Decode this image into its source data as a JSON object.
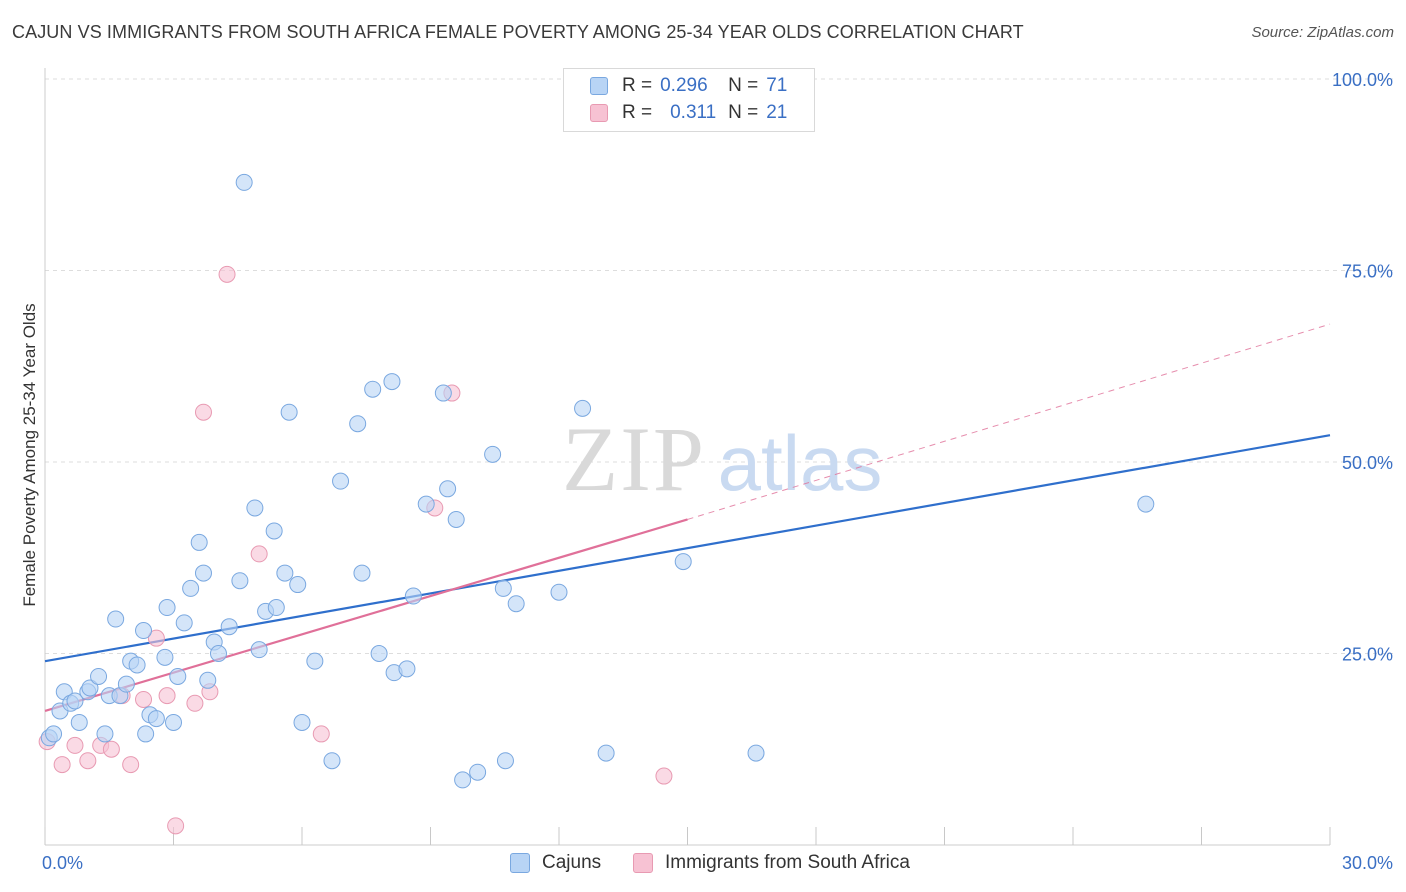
{
  "title": "CAJUN VS IMMIGRANTS FROM SOUTH AFRICA FEMALE POVERTY AMONG 25-34 YEAR OLDS CORRELATION CHART",
  "source": "Source: ZipAtlas.com",
  "watermark": {
    "zip": "ZIP",
    "atlas": "atlas"
  },
  "legend_top": {
    "rows": [
      {
        "r_label": "R =",
        "r_value": "0.296",
        "n_label": "N =",
        "n_value": "71"
      },
      {
        "r_label": "R =",
        "r_value": "0.311",
        "n_label": "N =",
        "n_value": "21"
      }
    ]
  },
  "colors": {
    "cajun_fill": "#b8d4f5",
    "cajun_stroke": "#7aa8e0",
    "cajun_line": "#2f6fcc",
    "sa_fill": "#f7c2d3",
    "sa_stroke": "#e89ab2",
    "sa_line": "#e07099",
    "grid": "#dddddd",
    "axis_label": "#3a6fc4"
  },
  "chart_data": {
    "type": "scatter",
    "title": "CAJUN VS IMMIGRANTS FROM SOUTH AFRICA FEMALE POVERTY AMONG 25-34 YEAR OLDS CORRELATION CHART",
    "xlabel": "",
    "ylabel": "Female Poverty Among 25-34 Year Olds",
    "xlim": [
      0,
      30
    ],
    "ylim": [
      0,
      100
    ],
    "x_tick_labels": [
      "0.0%",
      "30.0%"
    ],
    "y_tick_labels": [
      "25.0%",
      "50.0%",
      "75.0%",
      "100.0%"
    ],
    "y_ticks": [
      25,
      50,
      75,
      100
    ],
    "legend": [
      "Cajuns",
      "Immigrants from South Africa"
    ],
    "series": [
      {
        "name": "Cajuns",
        "points": [
          [
            0.1,
            14
          ],
          [
            0.2,
            14.5
          ],
          [
            0.35,
            17.5
          ],
          [
            0.45,
            20
          ],
          [
            0.6,
            18.5
          ],
          [
            0.7,
            18.8
          ],
          [
            0.8,
            16
          ],
          [
            1.0,
            20
          ],
          [
            1.05,
            20.5
          ],
          [
            1.25,
            22
          ],
          [
            1.4,
            14.5
          ],
          [
            1.5,
            19.5
          ],
          [
            1.65,
            29.5
          ],
          [
            1.75,
            19.5
          ],
          [
            1.9,
            21
          ],
          [
            2.0,
            24
          ],
          [
            2.15,
            23.5
          ],
          [
            2.3,
            28
          ],
          [
            2.35,
            14.5
          ],
          [
            2.45,
            17
          ],
          [
            2.6,
            16.5
          ],
          [
            2.8,
            24.5
          ],
          [
            2.85,
            31
          ],
          [
            3.0,
            16
          ],
          [
            3.1,
            22
          ],
          [
            3.25,
            29
          ],
          [
            3.4,
            33.5
          ],
          [
            3.6,
            39.5
          ],
          [
            3.7,
            35.5
          ],
          [
            3.8,
            21.5
          ],
          [
            3.95,
            26.5
          ],
          [
            4.05,
            25
          ],
          [
            4.3,
            28.5
          ],
          [
            4.55,
            34.5
          ],
          [
            4.65,
            86.5
          ],
          [
            4.9,
            44
          ],
          [
            5.0,
            25.5
          ],
          [
            5.15,
            30.5
          ],
          [
            5.35,
            41
          ],
          [
            5.4,
            31
          ],
          [
            5.6,
            35.5
          ],
          [
            5.7,
            56.5
          ],
          [
            5.9,
            34
          ],
          [
            6.0,
            16
          ],
          [
            6.3,
            24
          ],
          [
            6.7,
            11
          ],
          [
            6.9,
            47.5
          ],
          [
            7.3,
            55
          ],
          [
            7.4,
            35.5
          ],
          [
            7.65,
            59.5
          ],
          [
            7.8,
            25
          ],
          [
            8.1,
            60.5
          ],
          [
            8.15,
            22.5
          ],
          [
            8.45,
            23
          ],
          [
            8.6,
            32.5
          ],
          [
            8.9,
            44.5
          ],
          [
            9.3,
            59
          ],
          [
            9.4,
            46.5
          ],
          [
            9.6,
            42.5
          ],
          [
            9.75,
            8.5
          ],
          [
            10.1,
            9.5
          ],
          [
            10.45,
            51
          ],
          [
            10.7,
            33.5
          ],
          [
            10.75,
            11
          ],
          [
            11.0,
            31.5
          ],
          [
            12.0,
            33
          ],
          [
            12.55,
            57
          ],
          [
            13.1,
            12
          ],
          [
            14.9,
            37
          ],
          [
            16.6,
            12
          ],
          [
            25.7,
            44.5
          ]
        ],
        "trend": {
          "x0": 0,
          "y0": 24,
          "x1": 30,
          "y1": 53.5
        }
      },
      {
        "name": "Immigrants from South Africa",
        "points": [
          [
            0.05,
            13.5
          ],
          [
            0.4,
            10.5
          ],
          [
            0.7,
            13
          ],
          [
            1.0,
            11
          ],
          [
            1.3,
            13
          ],
          [
            1.55,
            12.5
          ],
          [
            1.8,
            19.5
          ],
          [
            2.0,
            10.5
          ],
          [
            2.3,
            19
          ],
          [
            2.6,
            27
          ],
          [
            2.85,
            19.5
          ],
          [
            3.05,
            2.5
          ],
          [
            3.5,
            18.5
          ],
          [
            3.7,
            56.5
          ],
          [
            3.85,
            20
          ],
          [
            4.25,
            74.5
          ],
          [
            5.0,
            38
          ],
          [
            6.45,
            14.5
          ],
          [
            9.1,
            44
          ],
          [
            9.5,
            59
          ],
          [
            14.45,
            9
          ]
        ],
        "trend_solid": {
          "x0": 0,
          "y0": 17.5,
          "x1": 15,
          "y1": 42.5
        },
        "trend_dashed": {
          "x0": 15,
          "y0": 42.5,
          "x1": 30,
          "y1": 68
        }
      }
    ]
  },
  "legend_bottom": {
    "items": [
      {
        "label": "Cajuns"
      },
      {
        "label": "Immigrants from South Africa"
      }
    ]
  }
}
